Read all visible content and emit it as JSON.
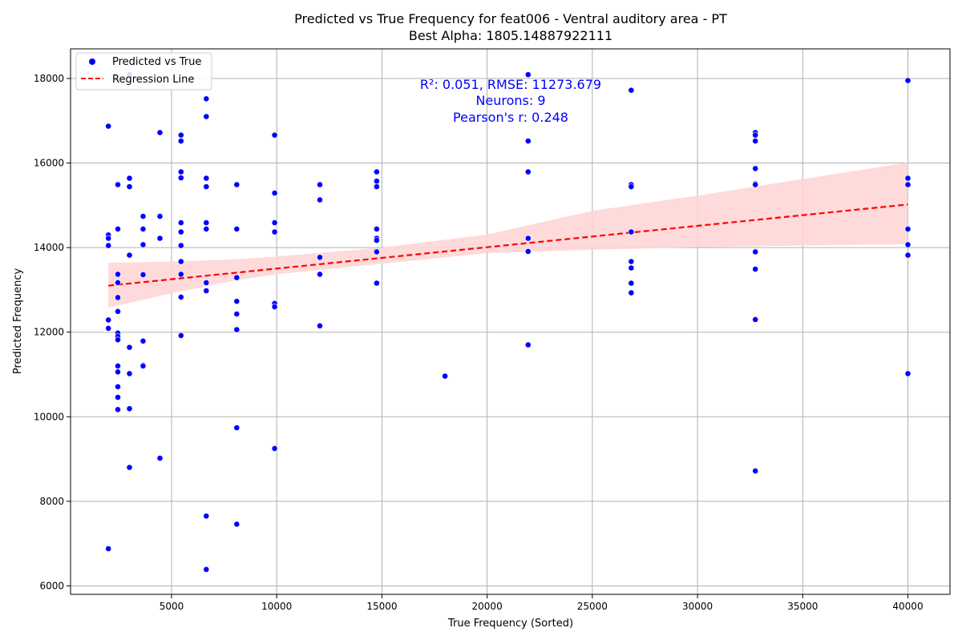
{
  "chart_data": {
    "type": "scatter",
    "title_line1": "Predicted vs True Frequency for feat006 - Ventral auditory area - PT",
    "title_line2": "Best Alpha: 1805.14887922111",
    "xlabel": "True Frequency (Sorted)",
    "ylabel": "Predicted Frequency",
    "xlim": [
      200,
      42000
    ],
    "ylim": [
      5800,
      18700
    ],
    "xticks": [
      5000,
      10000,
      15000,
      20000,
      25000,
      30000,
      35000,
      40000
    ],
    "xtick_labels": [
      "5000",
      "10000",
      "15000",
      "20000",
      "25000",
      "30000",
      "35000",
      "40000"
    ],
    "yticks": [
      6000,
      8000,
      10000,
      12000,
      14000,
      16000,
      18000
    ],
    "ytick_labels": [
      "6000",
      "8000",
      "10000",
      "12000",
      "14000",
      "16000",
      "18000"
    ],
    "grid": true,
    "legend_position": "top-left",
    "legend": {
      "scatter_label": "Predicted vs True",
      "line_label": "Regression Line"
    },
    "annotation": {
      "line1": "R²: 0.051, RMSE: 11273.679",
      "line2": "Neurons: 9",
      "line3": "Pearson's r: 0.248"
    },
    "colors": {
      "points": "#0000ff",
      "regression_line": "#ff0000",
      "confidence_band": "#ffd6d6",
      "annotation": "#0000ff",
      "grid": "#b0b0b0"
    },
    "regression": {
      "x": [
        2000,
        40000
      ],
      "y": [
        13100,
        15020
      ],
      "ci_x": [
        2000,
        5000,
        8000,
        10000,
        15000,
        20000,
        25000,
        30000,
        35000,
        40000
      ],
      "ci_lower": [
        12580,
        12920,
        13220,
        13370,
        13620,
        13870,
        13950,
        14010,
        14050,
        14080
      ],
      "ci_upper": [
        13640,
        13670,
        13720,
        13790,
        14000,
        14310,
        14870,
        15230,
        15620,
        16010
      ]
    },
    "points": [
      {
        "x": 2000,
        "y": 16870
      },
      {
        "x": 2000,
        "y": 14300
      },
      {
        "x": 2000,
        "y": 14220
      },
      {
        "x": 2000,
        "y": 14050
      },
      {
        "x": 2000,
        "y": 12290
      },
      {
        "x": 2000,
        "y": 12090
      },
      {
        "x": 2000,
        "y": 6880
      },
      {
        "x": 2450,
        "y": 15490
      },
      {
        "x": 2450,
        "y": 14440
      },
      {
        "x": 2450,
        "y": 13370
      },
      {
        "x": 2450,
        "y": 13170
      },
      {
        "x": 2450,
        "y": 12820
      },
      {
        "x": 2450,
        "y": 12490
      },
      {
        "x": 2450,
        "y": 11980
      },
      {
        "x": 2450,
        "y": 11900
      },
      {
        "x": 2450,
        "y": 11820
      },
      {
        "x": 2450,
        "y": 11200
      },
      {
        "x": 2450,
        "y": 11060
      },
      {
        "x": 2450,
        "y": 10710
      },
      {
        "x": 2450,
        "y": 10460
      },
      {
        "x": 2450,
        "y": 10170
      },
      {
        "x": 3000,
        "y": 18090
      },
      {
        "x": 3000,
        "y": 15640
      },
      {
        "x": 3000,
        "y": 15440
      },
      {
        "x": 3000,
        "y": 13820
      },
      {
        "x": 3000,
        "y": 11640
      },
      {
        "x": 3000,
        "y": 11020
      },
      {
        "x": 3000,
        "y": 10190
      },
      {
        "x": 3000,
        "y": 8800
      },
      {
        "x": 3650,
        "y": 14740
      },
      {
        "x": 3650,
        "y": 14440
      },
      {
        "x": 3650,
        "y": 14070
      },
      {
        "x": 3650,
        "y": 13360
      },
      {
        "x": 3650,
        "y": 11790
      },
      {
        "x": 3650,
        "y": 11220
      },
      {
        "x": 3650,
        "y": 11200
      },
      {
        "x": 4450,
        "y": 16720
      },
      {
        "x": 4450,
        "y": 14740
      },
      {
        "x": 4450,
        "y": 14220
      },
      {
        "x": 4450,
        "y": 9020
      },
      {
        "x": 5450,
        "y": 16660
      },
      {
        "x": 5450,
        "y": 16520
      },
      {
        "x": 5450,
        "y": 15790
      },
      {
        "x": 5450,
        "y": 15650
      },
      {
        "x": 5450,
        "y": 14590
      },
      {
        "x": 5450,
        "y": 14370
      },
      {
        "x": 5450,
        "y": 14050
      },
      {
        "x": 5450,
        "y": 13670
      },
      {
        "x": 5450,
        "y": 13370
      },
      {
        "x": 5450,
        "y": 12830
      },
      {
        "x": 5450,
        "y": 11920
      },
      {
        "x": 6650,
        "y": 17520
      },
      {
        "x": 6650,
        "y": 17100
      },
      {
        "x": 6650,
        "y": 15640
      },
      {
        "x": 6650,
        "y": 15440
      },
      {
        "x": 6650,
        "y": 14590
      },
      {
        "x": 6650,
        "y": 14440
      },
      {
        "x": 6650,
        "y": 13170
      },
      {
        "x": 6650,
        "y": 12980
      },
      {
        "x": 6650,
        "y": 7650
      },
      {
        "x": 6650,
        "y": 6390
      },
      {
        "x": 8100,
        "y": 15490
      },
      {
        "x": 8100,
        "y": 14440
      },
      {
        "x": 8100,
        "y": 13290
      },
      {
        "x": 8100,
        "y": 12730
      },
      {
        "x": 8100,
        "y": 12430
      },
      {
        "x": 8100,
        "y": 12060
      },
      {
        "x": 8100,
        "y": 9740
      },
      {
        "x": 8100,
        "y": 7460
      },
      {
        "x": 9900,
        "y": 16660
      },
      {
        "x": 9900,
        "y": 15290
      },
      {
        "x": 9900,
        "y": 14590
      },
      {
        "x": 9900,
        "y": 14370
      },
      {
        "x": 9900,
        "y": 12680
      },
      {
        "x": 9900,
        "y": 12600
      },
      {
        "x": 9900,
        "y": 9250
      },
      {
        "x": 12050,
        "y": 15490
      },
      {
        "x": 12050,
        "y": 15130
      },
      {
        "x": 12050,
        "y": 13770
      },
      {
        "x": 12050,
        "y": 13370
      },
      {
        "x": 12050,
        "y": 12150
      },
      {
        "x": 14750,
        "y": 15790
      },
      {
        "x": 14750,
        "y": 15570
      },
      {
        "x": 14750,
        "y": 15440
      },
      {
        "x": 14750,
        "y": 14440
      },
      {
        "x": 14750,
        "y": 14220
      },
      {
        "x": 14750,
        "y": 14170
      },
      {
        "x": 14750,
        "y": 13900
      },
      {
        "x": 14750,
        "y": 13160
      },
      {
        "x": 18000,
        "y": 10960
      },
      {
        "x": 21950,
        "y": 18090
      },
      {
        "x": 21950,
        "y": 16520
      },
      {
        "x": 21950,
        "y": 15790
      },
      {
        "x": 21950,
        "y": 14220
      },
      {
        "x": 21950,
        "y": 13910
      },
      {
        "x": 21950,
        "y": 11700
      },
      {
        "x": 26850,
        "y": 17720
      },
      {
        "x": 26850,
        "y": 15490
      },
      {
        "x": 26850,
        "y": 15440
      },
      {
        "x": 26850,
        "y": 14370
      },
      {
        "x": 26850,
        "y": 13670
      },
      {
        "x": 26850,
        "y": 13520
      },
      {
        "x": 26850,
        "y": 13160
      },
      {
        "x": 26850,
        "y": 12930
      },
      {
        "x": 32750,
        "y": 16720
      },
      {
        "x": 32750,
        "y": 16660
      },
      {
        "x": 32750,
        "y": 16520
      },
      {
        "x": 32750,
        "y": 15870
      },
      {
        "x": 32750,
        "y": 15510
      },
      {
        "x": 32750,
        "y": 15490
      },
      {
        "x": 32750,
        "y": 13900
      },
      {
        "x": 32750,
        "y": 13490
      },
      {
        "x": 32750,
        "y": 12300
      },
      {
        "x": 32750,
        "y": 8720
      },
      {
        "x": 40000,
        "y": 17950
      },
      {
        "x": 40000,
        "y": 15640
      },
      {
        "x": 40000,
        "y": 15490
      },
      {
        "x": 40000,
        "y": 14440
      },
      {
        "x": 40000,
        "y": 14070
      },
      {
        "x": 40000,
        "y": 13820
      },
      {
        "x": 40000,
        "y": 11020
      }
    ]
  }
}
